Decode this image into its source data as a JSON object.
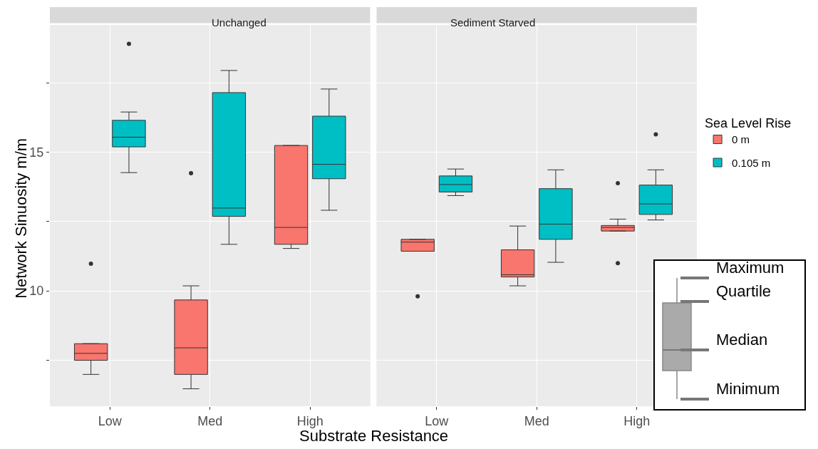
{
  "chart_data": [
    {
      "type": "box",
      "title": "Unchanged",
      "xlabel": "Substrate Resistance",
      "ylabel": "Network Sinuosity m/m",
      "categories": [
        "Low",
        "Med",
        "High"
      ],
      "ylim": [
        5.83,
        19.6
      ],
      "yticks": [
        {
          "value": 7.5,
          "label": null
        },
        10,
        {
          "value": 12.5,
          "label": null
        },
        15,
        {
          "value": 17.5,
          "label": null
        }
      ],
      "grid": true,
      "legend": "right",
      "legend_title": "Sea Level Rise",
      "series": [
        {
          "name": "0 m",
          "color": "#f8766d",
          "boxes": [
            {
              "low": 6.98,
              "q1": 7.49,
              "median": 7.74,
              "q3": 8.09,
              "high": 8.09,
              "outliers": [
                10.98
              ]
            },
            {
              "low": 6.46,
              "q1": 6.98,
              "median": 7.94,
              "q3": 9.67,
              "high": 10.18,
              "outliers": [
                14.25
              ]
            },
            {
              "low": 11.53,
              "q1": 11.68,
              "median": 12.29,
              "q3": 15.25,
              "high": 15.25
            }
          ]
        },
        {
          "name": "0.105 m",
          "color": "#00bfc4",
          "boxes": [
            {
              "low": 14.27,
              "q1": 15.2,
              "median": 15.55,
              "q3": 16.16,
              "high": 16.46,
              "outliers": [
                18.92
              ]
            },
            {
              "low": 11.68,
              "q1": 12.69,
              "median": 12.99,
              "q3": 17.16,
              "high": 17.96
            },
            {
              "low": 12.91,
              "q1": 14.05,
              "median": 14.57,
              "q3": 16.31,
              "high": 17.29
            }
          ]
        }
      ]
    },
    {
      "type": "box",
      "title": "Sediment Starved",
      "categories": [
        "Low",
        "Med",
        "High"
      ],
      "ylim": [
        5.83,
        19.6
      ],
      "yticks": [
        {
          "value": 7.5,
          "label": null
        },
        10,
        {
          "value": 12.5,
          "label": null
        },
        15,
        {
          "value": 17.5,
          "label": null
        }
      ],
      "grid": true,
      "tick_labels": "x",
      "legend": "right",
      "annotations": [
        "Maximum",
        "Quartile",
        "Median",
        "Minimum"
      ],
      "series": [
        {
          "name": "0 m",
          "color": "#f8766d",
          "boxes": [
            {
              "low": 11.43,
              "q1": 11.43,
              "median": 11.76,
              "q3": 11.86,
              "high": 11.86,
              "outliers": [
                9.8
              ]
            },
            {
              "low": 10.18,
              "q1": 10.5,
              "median": 10.58,
              "q3": 11.48,
              "high": 12.34
            },
            {
              "low": 12.16,
              "q1": 12.16,
              "median": 12.29,
              "q3": 12.36,
              "high": 12.59,
              "outliers": [
                13.89,
                11.0
              ]
            }
          ]
        },
        {
          "name": "0.105 m",
          "color": "#00bfc4",
          "boxes": [
            {
              "low": 13.44,
              "q1": 13.57,
              "median": 13.84,
              "q3": 14.15,
              "high": 14.4
            },
            {
              "low": 11.03,
              "q1": 11.86,
              "median": 12.41,
              "q3": 13.69,
              "high": 14.37
            },
            {
              "low": 12.56,
              "q1": 12.76,
              "median": 13.14,
              "q3": 13.82,
              "high": 14.37,
              "outliers": [
                15.65
              ]
            }
          ]
        }
      ]
    }
  ]
}
